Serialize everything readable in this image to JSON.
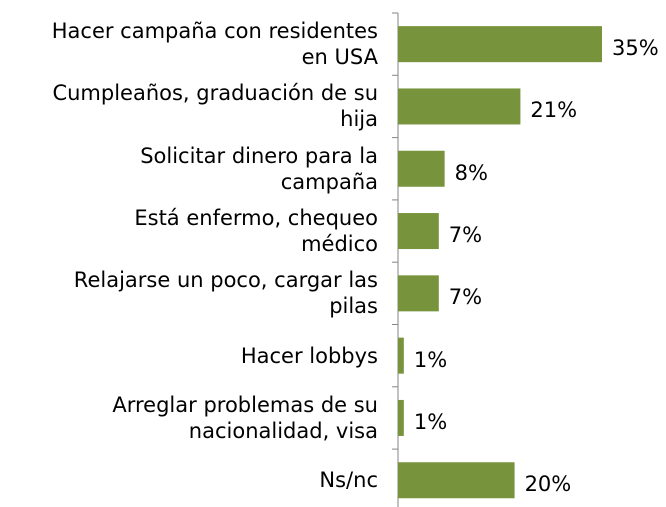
{
  "chart_data": {
    "type": "bar",
    "orientation": "horizontal",
    "categories": [
      "Hacer campaña con residentes\nen USA",
      "Cumpleaños, graduación de su\nhija",
      "Solicitar dinero para la\ncampaña",
      "Está enfermo, chequeo\nmédico",
      "Relajarse un poco, cargar las\npilas",
      "Hacer lobbys",
      "Arreglar problemas de su\nnacionalidad, visa",
      "Ns/nc"
    ],
    "values": [
      35,
      21,
      8,
      7,
      7,
      1,
      1,
      20
    ],
    "value_labels": [
      "35%",
      "21%",
      "8%",
      "7%",
      "7%",
      "1%",
      "1%",
      "20%"
    ],
    "color": "#77933c",
    "xlim": [
      0,
      35
    ]
  }
}
